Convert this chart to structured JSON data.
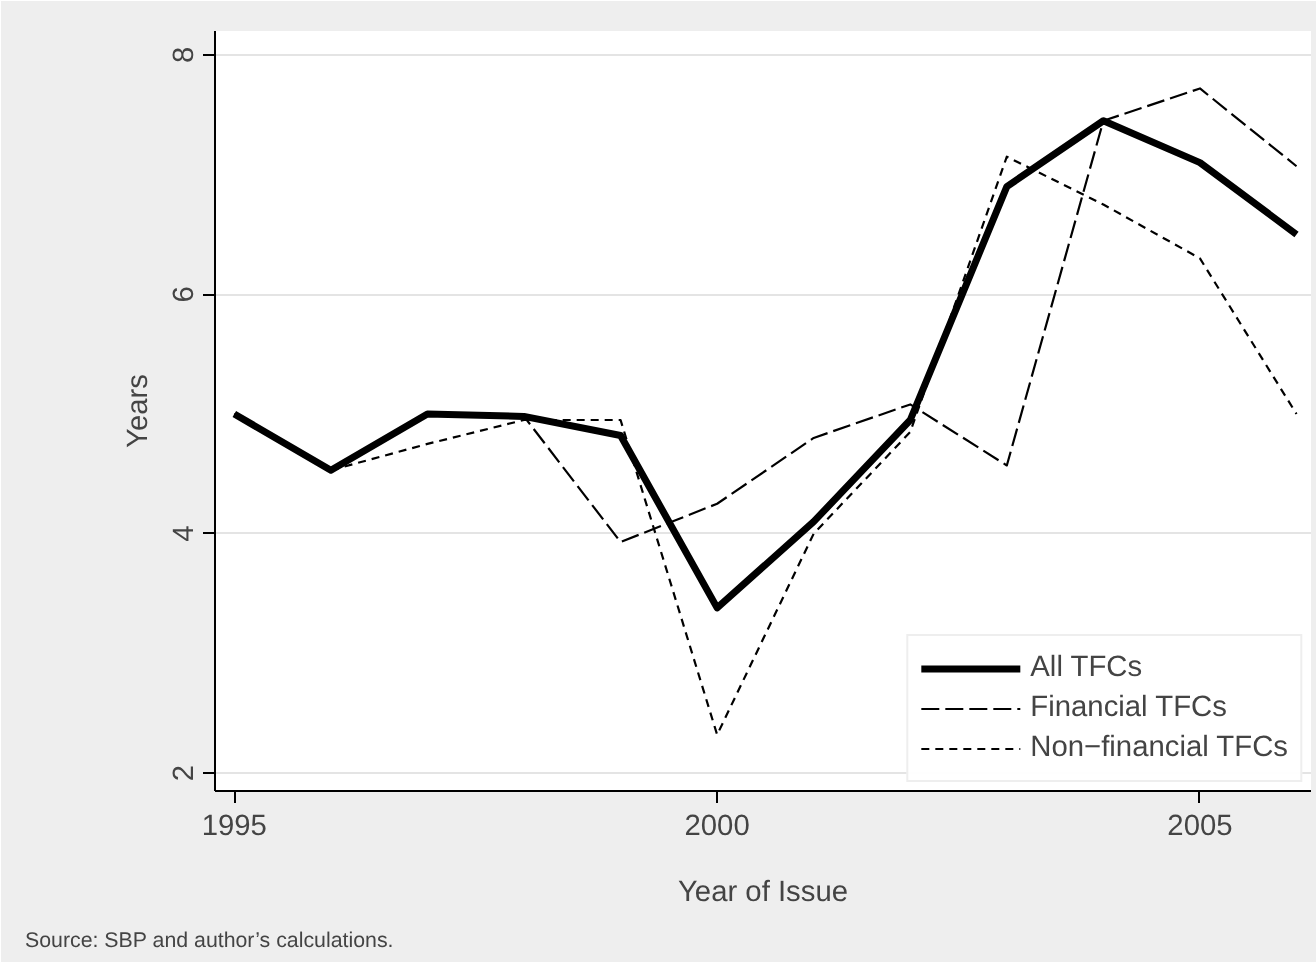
{
  "chart_data": {
    "type": "line",
    "xlabel": "Year of Issue",
    "ylabel": "Years",
    "x": [
      1995,
      1996,
      1997,
      1998,
      1999,
      2000,
      2001,
      2002,
      2003,
      2004,
      2005,
      2006
    ],
    "series": [
      {
        "name": "All TFCs",
        "color": "#000000",
        "line_style": "solid",
        "values": [
          5.0,
          4.53,
          5.0,
          4.98,
          4.82,
          3.38,
          4.1,
          4.95,
          6.9,
          7.45,
          7.1,
          6.5
        ]
      },
      {
        "name": "Financial TFCs",
        "color": "#000000",
        "line_style": "dashed",
        "values": [
          5.0,
          4.53,
          5.0,
          4.98,
          3.93,
          4.25,
          4.8,
          5.08,
          4.57,
          7.45,
          7.72,
          7.07
        ]
      },
      {
        "name": "Non−financial TFCs",
        "color": "#000000",
        "line_style": "dotted",
        "values": [
          5.0,
          4.53,
          4.75,
          4.95,
          4.95,
          2.32,
          4.0,
          4.85,
          7.15,
          6.75,
          6.3,
          5.0
        ]
      }
    ],
    "xlim": [
      1994.8,
      2006.15
    ],
    "ylim": [
      1.85,
      8.2
    ],
    "xticks": [
      1995,
      2000,
      2005
    ],
    "yticks": [
      2,
      4,
      6,
      8
    ],
    "grid": "y",
    "legend": "bottom right",
    "marker": "none",
    "annotations": [
      "Source: SBP and author’s calculations."
    ]
  }
}
